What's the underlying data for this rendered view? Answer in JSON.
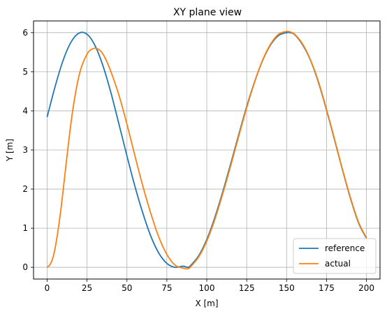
{
  "chart_data": {
    "type": "line",
    "title": "XY plane view",
    "xlabel": "X [m]",
    "ylabel": "Y [m]",
    "xlim": [
      -8.5,
      208.5
    ],
    "ylim": [
      -0.3,
      6.3
    ],
    "xticks": [
      0,
      25,
      50,
      75,
      100,
      125,
      150,
      175,
      200
    ],
    "yticks": [
      0,
      1,
      2,
      3,
      4,
      5,
      6
    ],
    "grid": true,
    "legend_position": "lower-right",
    "series": [
      {
        "name": "reference",
        "color": "#1f77b4",
        "x": [
          0,
          5,
          10,
          15,
          20,
          25,
          30,
          35,
          40,
          45,
          50,
          55,
          60,
          65,
          70,
          75,
          80,
          85,
          88,
          90,
          95,
          100,
          105,
          110,
          115,
          120,
          125,
          130,
          135,
          140,
          145,
          150,
          152,
          155,
          160,
          165,
          170,
          175,
          180,
          185,
          190,
          195,
          200
        ],
        "y": [
          3.84,
          4.62,
          5.29,
          5.76,
          5.99,
          5.96,
          5.67,
          5.15,
          4.46,
          3.66,
          2.85,
          2.07,
          1.38,
          0.79,
          0.36,
          0.1,
          0.0,
          0.03,
          0.0,
          0.05,
          0.3,
          0.71,
          1.27,
          1.93,
          2.65,
          3.39,
          4.11,
          4.75,
          5.29,
          5.69,
          5.93,
          6.0,
          6.0,
          5.95,
          5.69,
          5.29,
          4.72,
          4.02,
          3.26,
          2.49,
          1.76,
          1.14,
          0.74
        ]
      },
      {
        "name": "actual",
        "color": "#ff7f0e",
        "x": [
          0,
          2,
          4,
          6,
          8,
          10,
          12,
          14,
          16,
          18,
          20,
          22,
          25,
          27,
          30,
          33,
          36,
          40,
          45,
          50,
          55,
          60,
          65,
          70,
          75,
          80,
          85,
          88,
          90,
          95,
          100,
          105,
          110,
          115,
          120,
          125,
          130,
          135,
          140,
          145,
          150,
          152,
          155,
          160,
          165,
          170,
          175,
          180,
          185,
          190,
          195,
          200
        ],
        "y": [
          0.0,
          0.08,
          0.3,
          0.72,
          1.28,
          1.95,
          2.68,
          3.38,
          4.0,
          4.5,
          4.9,
          5.18,
          5.45,
          5.55,
          5.6,
          5.55,
          5.38,
          5.0,
          4.4,
          3.66,
          2.85,
          2.07,
          1.37,
          0.77,
          0.33,
          0.06,
          -0.02,
          -0.04,
          0.02,
          0.27,
          0.67,
          1.22,
          1.88,
          2.6,
          3.35,
          4.08,
          4.74,
          5.3,
          5.71,
          5.96,
          6.03,
          6.02,
          5.96,
          5.71,
          5.3,
          4.74,
          4.04,
          3.28,
          2.5,
          1.78,
          1.16,
          0.75
        ]
      }
    ]
  }
}
